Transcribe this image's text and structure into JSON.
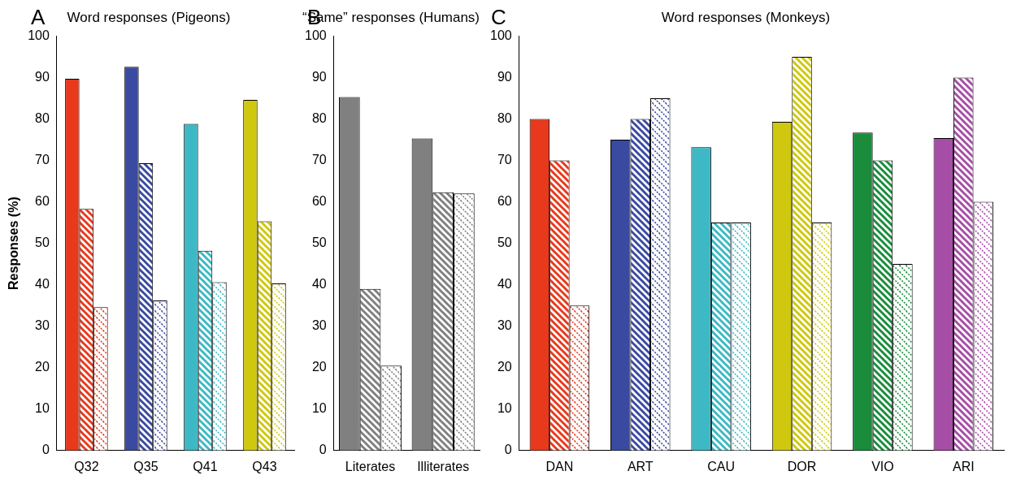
{
  "chart_data": [
    {
      "type": "bar",
      "annotations": [
        "A"
      ],
      "title": "Word responses (Pigeons)",
      "y_label": "Responses (%)",
      "categories": [
        "Q32",
        "Q35",
        "Q41",
        "Q43"
      ],
      "colors": [
        "#e8391c",
        "#3a4aa0",
        "#3cb9c4",
        "#cfc80e"
      ],
      "series": [
        {
          "line_style": "solid",
          "values": [
            89.7,
            92.6,
            78.8,
            84.6
          ]
        },
        {
          "line_style": "dashed",
          "values": [
            58.3,
            69.3,
            48.2,
            55.3
          ]
        },
        {
          "line_style": "dotted",
          "values": [
            34.6,
            36.2,
            40.6,
            40.3
          ]
        }
      ],
      "ylim": [
        0,
        100
      ],
      "yticks": [
        0,
        10,
        20,
        30,
        40,
        50,
        60,
        70,
        80,
        90,
        100
      ],
      "grid": false
    },
    {
      "type": "bar",
      "annotations": [
        "B"
      ],
      "title": "“Same” responses (Humans)",
      "categories": [
        "Literates",
        "Illiterates"
      ],
      "colors": [
        "#808080",
        "#808080"
      ],
      "series": [
        {
          "line_style": "solid",
          "values": [
            85.3,
            75.3
          ]
        },
        {
          "line_style": "dashed",
          "values": [
            39.0,
            62.3
          ]
        },
        {
          "line_style": "dotted",
          "values": [
            20.5,
            62.0
          ]
        }
      ],
      "ylim": [
        0,
        100
      ],
      "yticks": [
        0,
        10,
        20,
        30,
        40,
        50,
        60,
        70,
        80,
        90,
        100
      ],
      "grid": false
    },
    {
      "type": "bar",
      "annotations": [
        "C"
      ],
      "title": "Word responses (Monkeys)",
      "categories": [
        "DAN",
        "ART",
        "CAU",
        "DOR",
        "VIO",
        "ARI"
      ],
      "colors": [
        "#e8391c",
        "#3a4aa0",
        "#3cb9c4",
        "#cfc80e",
        "#1a8c3c",
        "#a64ea6"
      ],
      "series": [
        {
          "line_style": "solid",
          "values": [
            80,
            75,
            73.2,
            79.3,
            76.7,
            75.4
          ]
        },
        {
          "line_style": "dashed",
          "values": [
            70,
            80,
            55,
            95,
            70,
            90
          ]
        },
        {
          "line_style": "dotted",
          "values": [
            35,
            85,
            55,
            55,
            45,
            60
          ]
        }
      ],
      "ylim": [
        0,
        100
      ],
      "yticks": [
        0,
        10,
        20,
        30,
        40,
        50,
        60,
        70,
        80,
        90,
        100
      ],
      "grid": false
    }
  ]
}
